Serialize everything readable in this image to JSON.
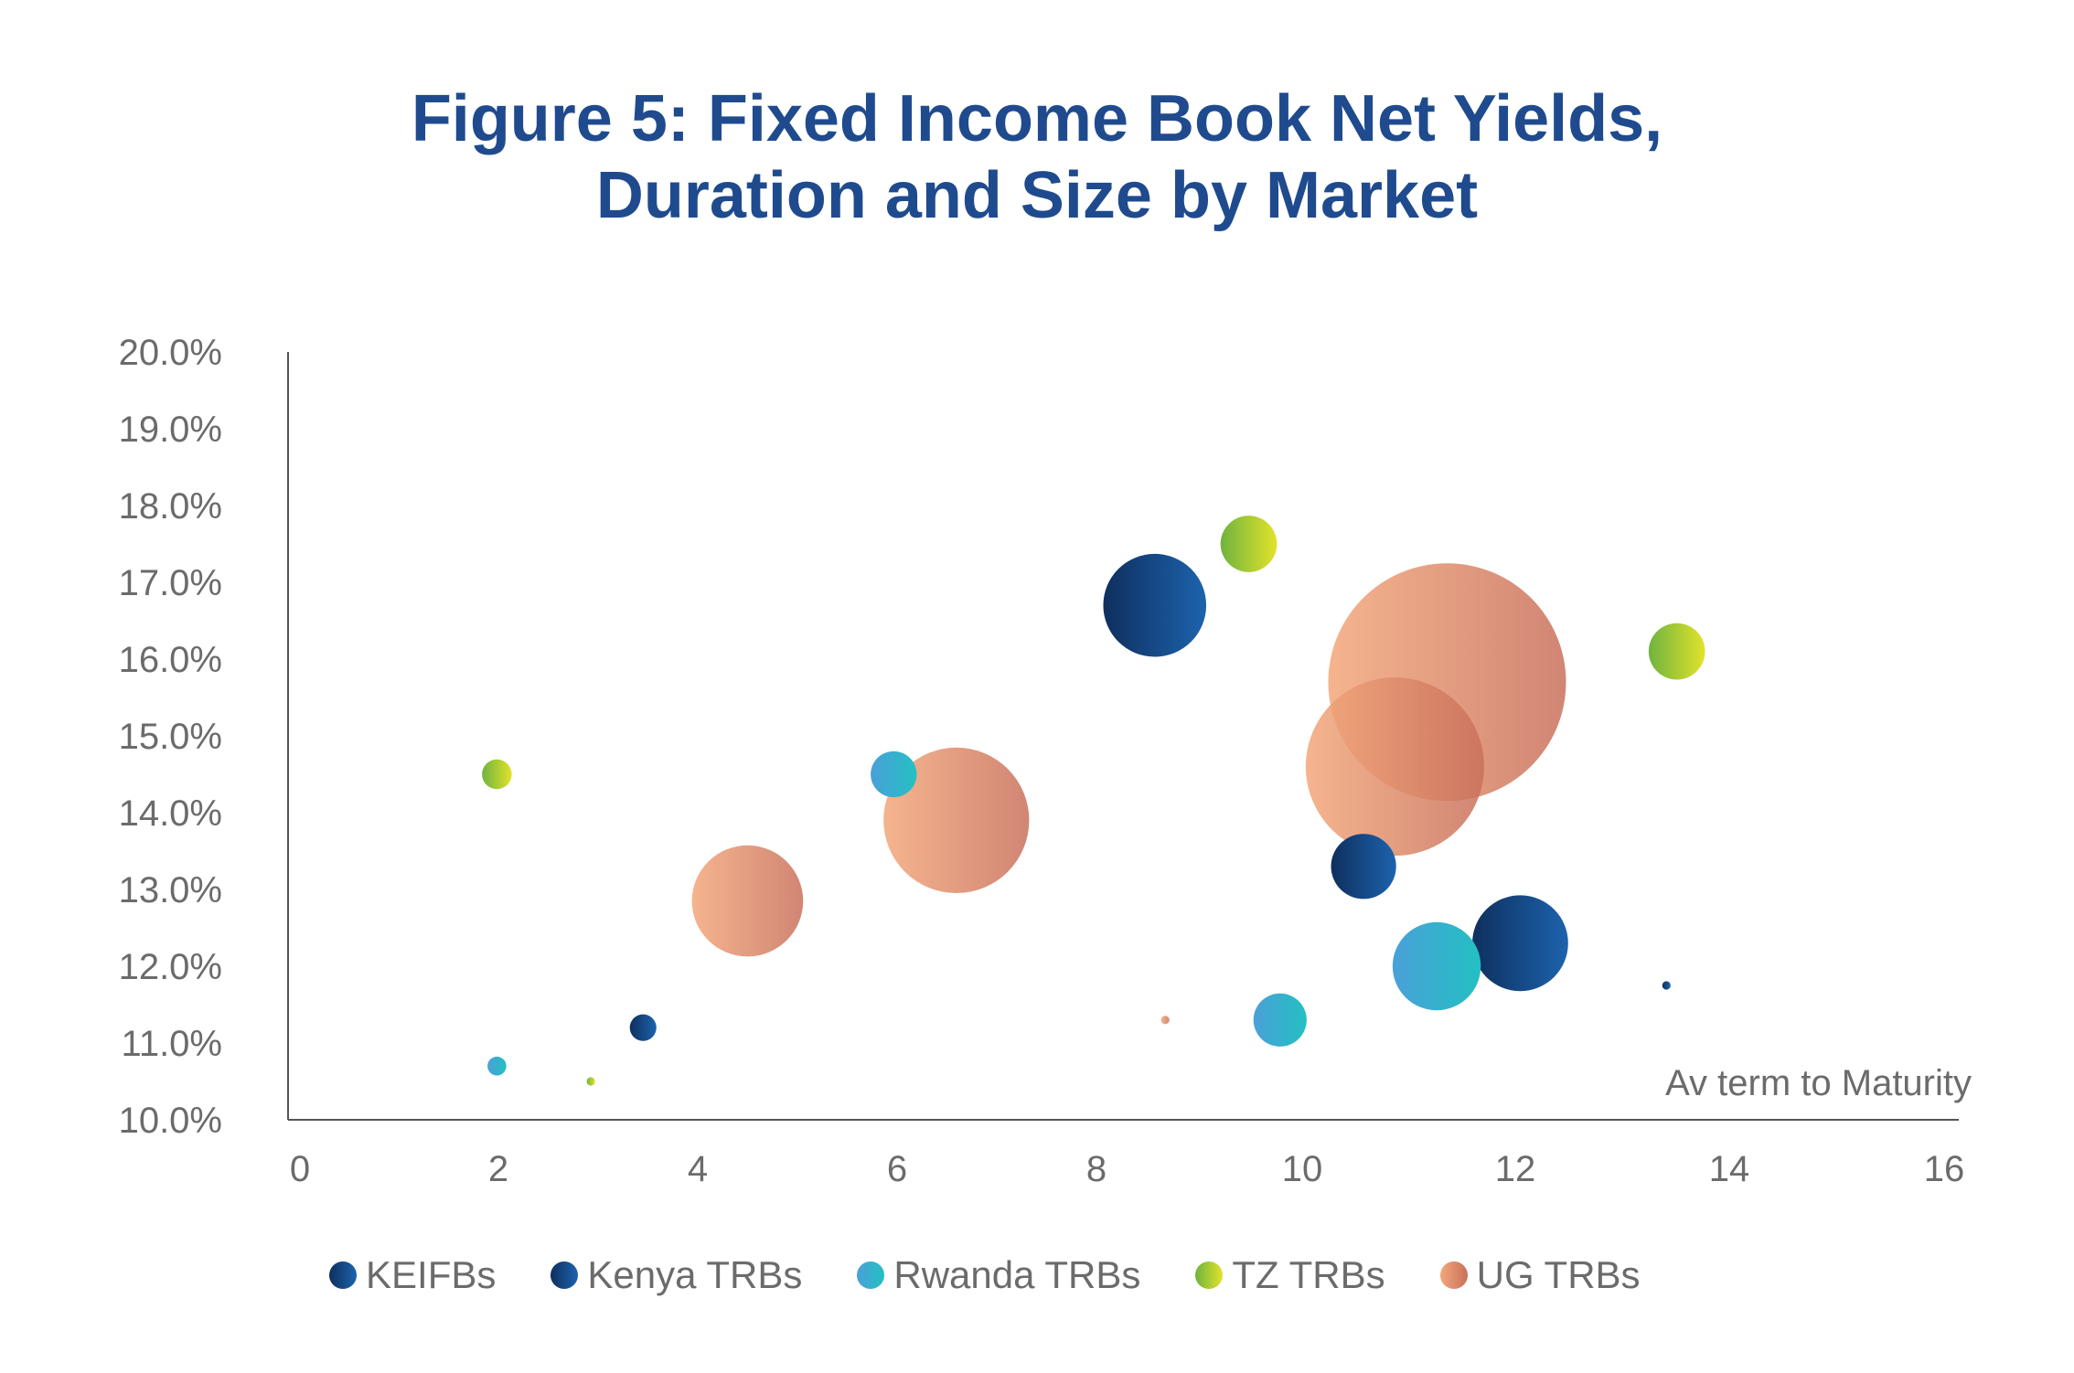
{
  "chart_data": {
    "type": "scatter",
    "title_lines": [
      "Figure 5: Fixed Income Book Net Yields,",
      "Duration and Size by Market"
    ],
    "xlabel": "Av term to Maturity",
    "ylabel": "",
    "xlim": [
      0,
      16
    ],
    "ylim": [
      10.0,
      20.0
    ],
    "x_ticks": [
      "0",
      "2",
      "4",
      "6",
      "8",
      "10",
      "12",
      "14",
      "16"
    ],
    "y_ticks": [
      "10.0%",
      "11.0%",
      "12.0%",
      "13.0%",
      "14.0%",
      "15.0%",
      "16.0%",
      "17.0%",
      "18.0%",
      "19.0%",
      "20.0%"
    ],
    "legend_position": "bottom",
    "grid": false,
    "series": [
      {
        "name": "KEIFBs",
        "gradient": [
          "#0f2f5e",
          "#1c63ad"
        ],
        "points": [
          {
            "x": 8.3,
            "y": 16.7,
            "size": 3.0
          },
          {
            "x": 10.3,
            "y": 13.3,
            "size": 1.2
          },
          {
            "x": 11.8,
            "y": 12.3,
            "size": 2.6
          }
        ]
      },
      {
        "name": "Kenya TRBs",
        "gradient": [
          "#0f2f5e",
          "#1c63ad"
        ],
        "points": [
          {
            "x": 3.4,
            "y": 11.2,
            "size": 0.2
          },
          {
            "x": 13.2,
            "y": 11.75,
            "size": 0.02
          }
        ]
      },
      {
        "name": "Rwanda TRBs",
        "gradient": [
          "#4aa0d8",
          "#23c0c3"
        ],
        "points": [
          {
            "x": 5.8,
            "y": 14.5,
            "size": 0.6
          },
          {
            "x": 9.5,
            "y": 11.3,
            "size": 0.8
          },
          {
            "x": 11.0,
            "y": 12.0,
            "size": 2.2
          },
          {
            "x": 2.0,
            "y": 10.7,
            "size": 0.1
          }
        ]
      },
      {
        "name": "TZ TRBs",
        "gradient": [
          "#6fb33f",
          "#e2e32a"
        ],
        "points": [
          {
            "x": 9.2,
            "y": 17.5,
            "size": 0.9
          },
          {
            "x": 13.3,
            "y": 16.1,
            "size": 0.9
          },
          {
            "x": 2.0,
            "y": 14.5,
            "size": 0.25
          },
          {
            "x": 2.9,
            "y": 10.5,
            "size": 0.02
          }
        ]
      },
      {
        "name": "UG TRBs",
        "gradient": [
          "#f3a77a",
          "#c9705b"
        ],
        "points": [
          {
            "x": 11.1,
            "y": 15.7,
            "size": 16.0
          },
          {
            "x": 10.6,
            "y": 14.6,
            "size": 9.0
          },
          {
            "x": 6.4,
            "y": 13.9,
            "size": 6.0
          },
          {
            "x": 4.4,
            "y": 12.85,
            "size": 3.5
          },
          {
            "x": 8.4,
            "y": 11.3,
            "size": 0.02
          }
        ]
      }
    ]
  }
}
